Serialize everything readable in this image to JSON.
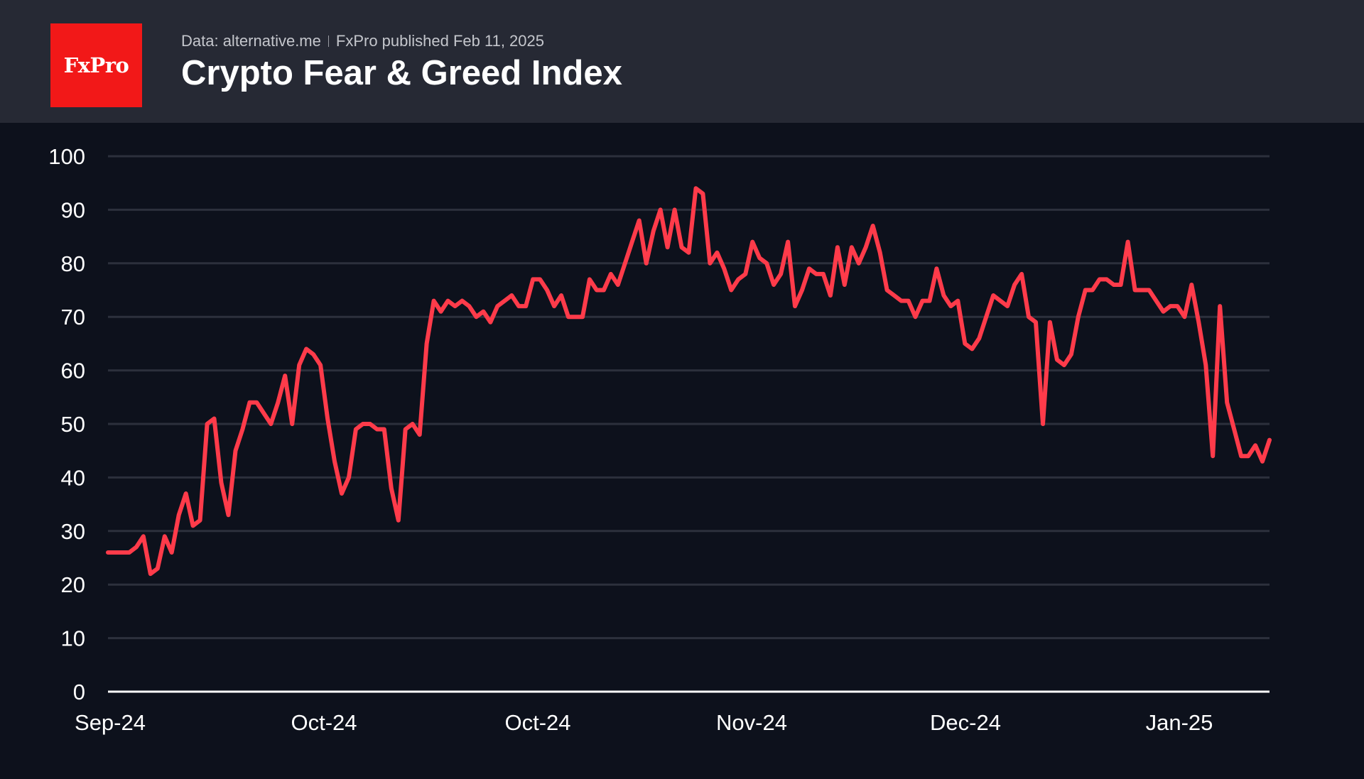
{
  "header": {
    "logo_text": "FxPro",
    "source": "Data: alternative.me",
    "published": "FxPro published Feb 11, 2025",
    "title": "Crypto Fear & Greed Index"
  },
  "colors": {
    "header_bg": "#262934",
    "chart_bg": "#0d111c",
    "line": "#ff3b4a",
    "grid": "#2c303c",
    "logo_bg": "#f21818"
  },
  "chart_data": {
    "type": "line",
    "title": "Crypto Fear & Greed Index",
    "xlabel": "",
    "ylabel": "",
    "ylim": [
      0,
      100
    ],
    "yticks": [
      0,
      10,
      20,
      30,
      40,
      50,
      60,
      70,
      80,
      90,
      100
    ],
    "x_tick_labels": [
      "Sep-24",
      "Oct-24",
      "Oct-24",
      "Nov-24",
      "Dec-24",
      "Jan-25"
    ],
    "grid": true,
    "series": [
      {
        "color": "#ff3b4a",
        "values": [
          26,
          26,
          26,
          26,
          27,
          29,
          22,
          23,
          29,
          26,
          33,
          37,
          31,
          32,
          50,
          51,
          39,
          33,
          45,
          49,
          54,
          54,
          52,
          50,
          54,
          59,
          50,
          61,
          64,
          63,
          61,
          51,
          43,
          37,
          40,
          49,
          50,
          50,
          49,
          49,
          38,
          32,
          49,
          50,
          48,
          65,
          73,
          71,
          73,
          72,
          73,
          72,
          70,
          71,
          69,
          72,
          73,
          74,
          72,
          72,
          77,
          77,
          75,
          72,
          74,
          70,
          70,
          70,
          77,
          75,
          75,
          78,
          76,
          80,
          84,
          88,
          80,
          86,
          90,
          83,
          90,
          83,
          82,
          94,
          93,
          80,
          82,
          79,
          75,
          77,
          78,
          84,
          81,
          80,
          76,
          78,
          84,
          72,
          75,
          79,
          78,
          78,
          74,
          83,
          76,
          83,
          80,
          83,
          87,
          82,
          75,
          74,
          73,
          73,
          70,
          73,
          73,
          79,
          74,
          72,
          73,
          65,
          64,
          66,
          70,
          74,
          73,
          72,
          76,
          78,
          70,
          69,
          50,
          69,
          62,
          61,
          63,
          70,
          75,
          75,
          77,
          77,
          76,
          76,
          84,
          75,
          75,
          75,
          73,
          71,
          72,
          72,
          70,
          76,
          69,
          61,
          44,
          72,
          54,
          49,
          44,
          44,
          46,
          43,
          47
        ]
      }
    ]
  }
}
